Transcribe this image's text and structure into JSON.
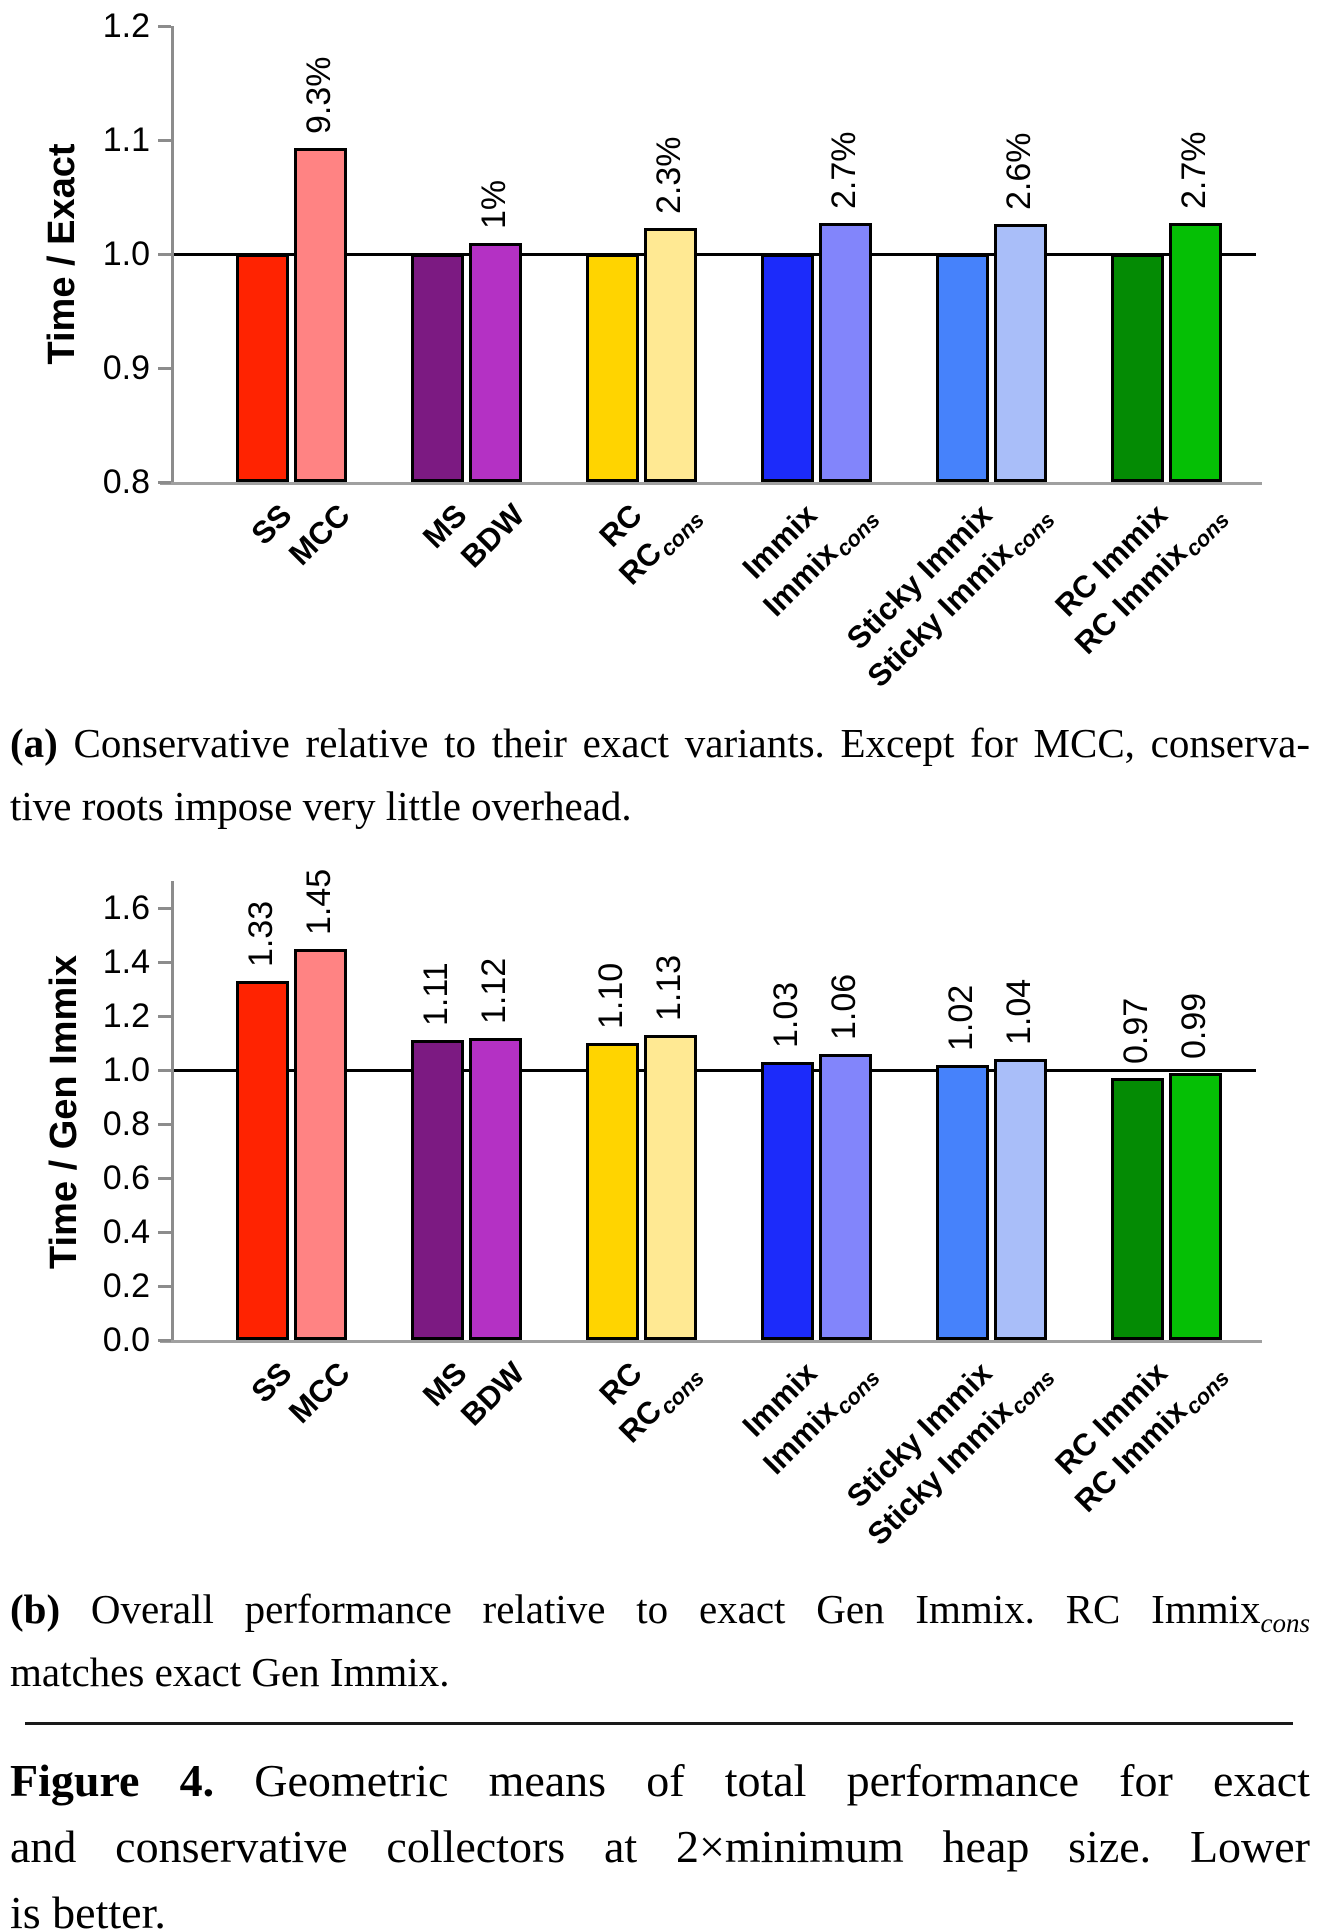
{
  "figure": {
    "caption_a": {
      "lines": [
        {
          "justify": true,
          "segments": [
            {
              "text": "(a)",
              "bold": true
            },
            {
              "text": " Conservative relative to their exact variants. Except for MCC, conserva-"
            }
          ]
        },
        {
          "justify": false,
          "segments": [
            {
              "text": "tive roots impose very little overhead."
            }
          ]
        }
      ]
    },
    "caption_b": {
      "lines": [
        {
          "justify": true,
          "segments": [
            {
              "text": "(b)",
              "bold": true
            },
            {
              "text": " Overall performance relative to exact Gen Immix. RC Immix"
            },
            {
              "text": "cons",
              "sub": true,
              "italic": true
            }
          ]
        },
        {
          "justify": false,
          "segments": [
            {
              "text": "matches exact Gen Immix."
            }
          ]
        }
      ]
    },
    "main_caption": {
      "lines": [
        {
          "justify": true,
          "segments": [
            {
              "text": "Figure 4.",
              "bold": true
            },
            {
              "text": " Geometric means of total performance for exact"
            }
          ]
        },
        {
          "justify": true,
          "segments": [
            {
              "text": "and conservative collectors at 2×minimum heap size. Lower"
            }
          ]
        },
        {
          "justify": false,
          "segments": [
            {
              "text": "is better."
            }
          ]
        }
      ]
    }
  },
  "chart_data": [
    {
      "id": "a",
      "type": "bar",
      "title": "",
      "xlabel": "",
      "ylabel": "Time / Exact",
      "ylim": [
        0.8,
        1.2
      ],
      "grid": false,
      "legend": null,
      "reference_line": 1.0,
      "yticks": [
        {
          "v": 1.2,
          "label": "1.2"
        },
        {
          "v": 1.1,
          "label": "1.1"
        },
        {
          "v": 1.0,
          "label": "1.0"
        },
        {
          "v": 0.9,
          "label": "0.9"
        },
        {
          "v": 0.8,
          "label": "0.8"
        }
      ],
      "categories": [
        {
          "label": "SS"
        },
        {
          "label": "MCC"
        },
        {
          "label": "MS"
        },
        {
          "label": "BDW"
        },
        {
          "label": "RC"
        },
        {
          "label": "RC",
          "sub": "cons"
        },
        {
          "label": "Immix"
        },
        {
          "label": "Immix",
          "sub": "cons"
        },
        {
          "label": "Sticky Immix"
        },
        {
          "label": "Sticky Immix",
          "sub": "cons"
        },
        {
          "label": "RC Immix"
        },
        {
          "label": "RC Immix",
          "sub": "cons"
        }
      ],
      "values": [
        1.0,
        1.093,
        1.0,
        1.01,
        1.0,
        1.023,
        1.0,
        1.027,
        1.0,
        1.026,
        1.0,
        1.027
      ],
      "bar_labels": [
        "",
        "9.3%",
        "",
        "1%",
        "",
        "2.3%",
        "",
        "2.7%",
        "",
        "2.6%",
        "",
        "2.7%"
      ],
      "colors": [
        "#FF2301",
        "#FF8383",
        "#7C1A82",
        "#B431C4",
        "#FFD400",
        "#FFE993",
        "#1C2BFA",
        "#8285FB",
        "#4682FB",
        "#A9BEF9",
        "#048B04",
        "#05BF05"
      ]
    },
    {
      "id": "b",
      "type": "bar",
      "title": "",
      "xlabel": "",
      "ylabel": "Time / Gen Immix",
      "ylim": [
        0,
        1.7
      ],
      "grid": false,
      "legend": null,
      "reference_line": 1.0,
      "yticks": [
        {
          "v": 1.6,
          "label": "1.6"
        },
        {
          "v": 1.4,
          "label": "1.4"
        },
        {
          "v": 1.2,
          "label": "1.2"
        },
        {
          "v": 1.0,
          "label": "1.0"
        },
        {
          "v": 0.8,
          "label": "0.8"
        },
        {
          "v": 0.6,
          "label": "0.6"
        },
        {
          "v": 0.4,
          "label": "0.4"
        },
        {
          "v": 0.2,
          "label": "0.2"
        },
        {
          "v": 0.0,
          "label": "0.0"
        }
      ],
      "categories": [
        {
          "label": "SS"
        },
        {
          "label": "MCC"
        },
        {
          "label": "MS"
        },
        {
          "label": "BDW"
        },
        {
          "label": "RC"
        },
        {
          "label": "RC",
          "sub": "cons"
        },
        {
          "label": "Immix"
        },
        {
          "label": "Immix",
          "sub": "cons"
        },
        {
          "label": "Sticky Immix"
        },
        {
          "label": "Sticky Immix",
          "sub": "cons"
        },
        {
          "label": "RC Immix"
        },
        {
          "label": "RC Immix",
          "sub": "cons"
        }
      ],
      "values": [
        1.33,
        1.45,
        1.11,
        1.12,
        1.1,
        1.13,
        1.03,
        1.06,
        1.02,
        1.04,
        0.97,
        0.99
      ],
      "bar_labels": [
        "1.33",
        "1.45",
        "1.11",
        "1.12",
        "1.10",
        "1.13",
        "1.03",
        "1.06",
        "1.02",
        "1.04",
        "0.97",
        "0.99"
      ],
      "colors": [
        "#FF2301",
        "#FF8383",
        "#7C1A82",
        "#B431C4",
        "#FFD400",
        "#FFE993",
        "#1C2BFA",
        "#8285FB",
        "#4682FB",
        "#A9BEF9",
        "#048B04",
        "#05BF05"
      ]
    }
  ]
}
